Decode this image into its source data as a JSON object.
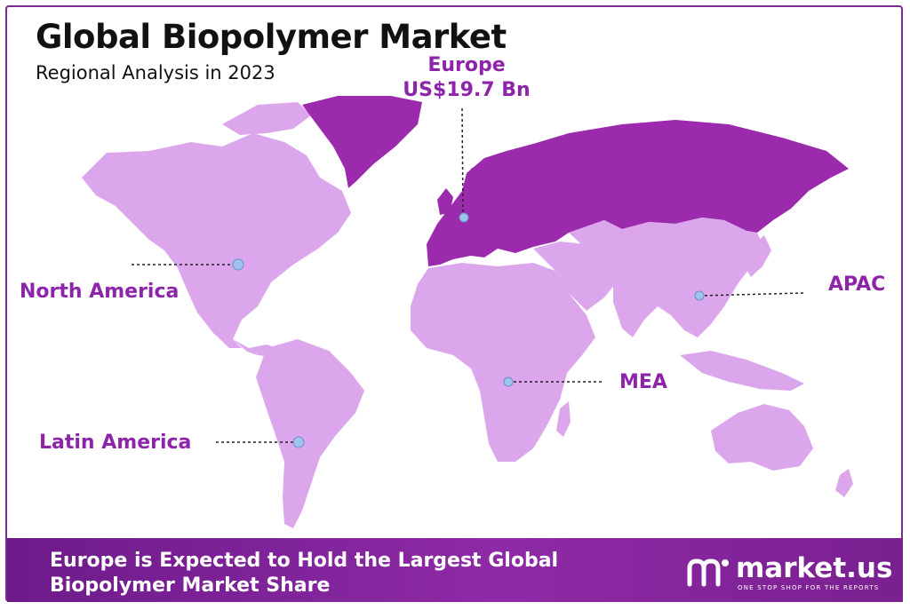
{
  "header": {
    "title": "Global Biopolymer Market",
    "subtitle": "Regional Analysis in 2023"
  },
  "regions": {
    "europe": {
      "name": "Europe",
      "value": "US$19.7 Bn",
      "highlighted": true,
      "color": "#9b2aad"
    },
    "north_america": {
      "name": "North America",
      "color": "#dca6ec"
    },
    "latin_america": {
      "name": "Latin America",
      "color": "#dca6ec"
    },
    "mea": {
      "name": "MEA",
      "color": "#dca6ec"
    },
    "apac": {
      "name": "APAC",
      "color": "#dca6ec"
    }
  },
  "colors": {
    "accent": "#8e24aa",
    "highlight_region": "#9b2aad",
    "other_regions": "#dca6ec",
    "marker": "#9ec3ec",
    "footer_bg": "#7b2090"
  },
  "footer": {
    "headline": "Europe is Expected to Hold the Largest Global Biopolymer Market Share"
  },
  "brand": {
    "name": "market.us",
    "tagline": "ONE STOP SHOP FOR THE REPORTS",
    "icon": "market-us-logo-icon"
  }
}
